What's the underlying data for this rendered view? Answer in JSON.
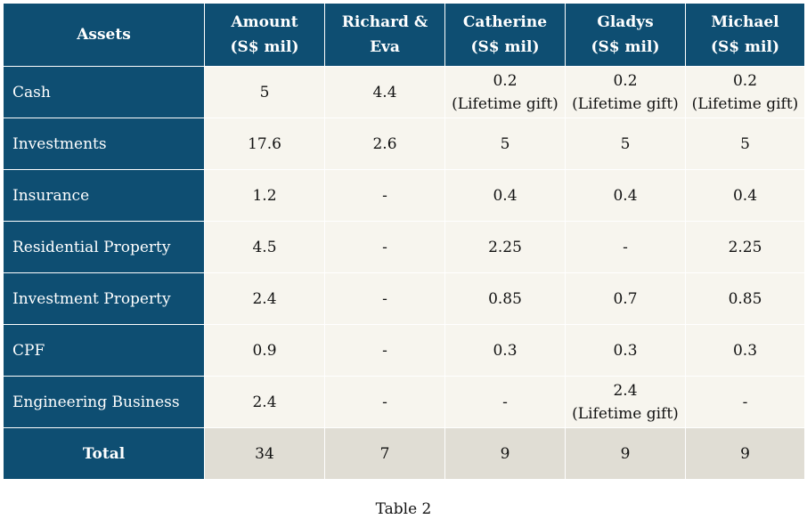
{
  "table": {
    "headers": [
      {
        "line1": "Assets",
        "line2": ""
      },
      {
        "line1": "Amount",
        "line2": "(S$ mil)"
      },
      {
        "line1": "Richard &",
        "line2": "Eva"
      },
      {
        "line1": "Catherine",
        "line2": "(S$ mil)"
      },
      {
        "line1": "Gladys",
        "line2": "(S$ mil)"
      },
      {
        "line1": "Michael",
        "line2": "(S$ mil)"
      }
    ],
    "rows": [
      {
        "label": "Cash",
        "cells": [
          {
            "v": "5",
            "note": ""
          },
          {
            "v": "4.4",
            "note": ""
          },
          {
            "v": "0.2",
            "note": "(Lifetime gift)"
          },
          {
            "v": "0.2",
            "note": "(Lifetime gift)"
          },
          {
            "v": "0.2",
            "note": "(Lifetime gift)"
          }
        ]
      },
      {
        "label": "Investments",
        "cells": [
          {
            "v": "17.6",
            "note": ""
          },
          {
            "v": "2.6",
            "note": ""
          },
          {
            "v": "5",
            "note": ""
          },
          {
            "v": "5",
            "note": ""
          },
          {
            "v": "5",
            "note": ""
          }
        ]
      },
      {
        "label": "Insurance",
        "cells": [
          {
            "v": "1.2",
            "note": ""
          },
          {
            "v": "-",
            "note": ""
          },
          {
            "v": "0.4",
            "note": ""
          },
          {
            "v": "0.4",
            "note": ""
          },
          {
            "v": "0.4",
            "note": ""
          }
        ]
      },
      {
        "label": "Residential Property",
        "cells": [
          {
            "v": "4.5",
            "note": ""
          },
          {
            "v": "-",
            "note": ""
          },
          {
            "v": "2.25",
            "note": ""
          },
          {
            "v": "-",
            "note": ""
          },
          {
            "v": "2.25",
            "note": ""
          }
        ]
      },
      {
        "label": "Investment Property",
        "cells": [
          {
            "v": "2.4",
            "note": ""
          },
          {
            "v": "-",
            "note": ""
          },
          {
            "v": "0.85",
            "note": ""
          },
          {
            "v": "0.7",
            "note": ""
          },
          {
            "v": "0.85",
            "note": ""
          }
        ]
      },
      {
        "label": "CPF",
        "cells": [
          {
            "v": "0.9",
            "note": ""
          },
          {
            "v": "-",
            "note": ""
          },
          {
            "v": "0.3",
            "note": ""
          },
          {
            "v": "0.3",
            "note": ""
          },
          {
            "v": "0.3",
            "note": ""
          }
        ]
      },
      {
        "label": "Engineering Business",
        "cells": [
          {
            "v": "2.4",
            "note": ""
          },
          {
            "v": "-",
            "note": ""
          },
          {
            "v": "-",
            "note": ""
          },
          {
            "v": "2.4",
            "note": "(Lifetime gift)"
          },
          {
            "v": "-",
            "note": ""
          }
        ]
      }
    ],
    "total": {
      "label": "Total",
      "cells": [
        "34",
        "7",
        "9",
        "9",
        "9"
      ]
    }
  },
  "caption": "Table 2",
  "colors": {
    "header_bg": "#0e4e72",
    "cell_bg": "#f7f5ee",
    "total_bg": "#e0ddd4"
  }
}
